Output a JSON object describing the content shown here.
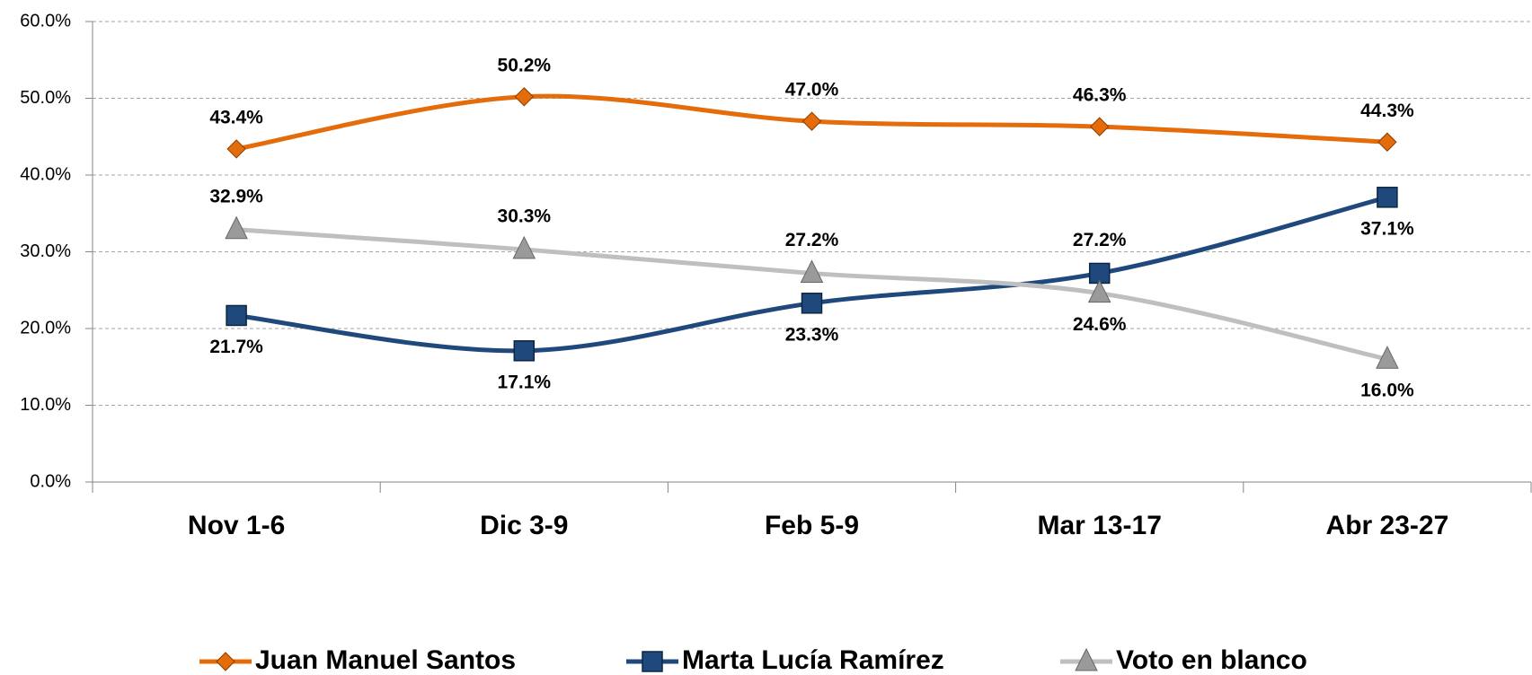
{
  "chart_data": {
    "type": "line",
    "categories": [
      "Nov 1-6",
      "Dic 3-9",
      "Feb 5-9",
      "Mar 13-17",
      "Abr 23-27"
    ],
    "series": [
      {
        "name": "Juan Manuel Santos",
        "color": "#E46C0A",
        "marker": "diamond",
        "values": [
          43.4,
          50.2,
          47.0,
          46.3,
          44.3
        ],
        "value_labels": [
          "43.4%",
          "50.2%",
          "47.0%",
          "46.3%",
          "44.3%"
        ]
      },
      {
        "name": "Marta Lucía Ramírez",
        "color": "#1F497D",
        "marker": "square",
        "values": [
          21.7,
          17.1,
          23.3,
          27.2,
          37.1
        ],
        "value_labels": [
          "21.7%",
          "17.1%",
          "23.3%",
          "27.2%",
          "37.1%"
        ]
      },
      {
        "name": "Voto en blanco",
        "color": "#BFBFBF",
        "marker": "triangle",
        "values": [
          32.9,
          30.3,
          27.2,
          24.6,
          16.0
        ],
        "value_labels": [
          "32.9%",
          "30.3%",
          "27.2%",
          "24.6%",
          "16.0%"
        ]
      }
    ],
    "ylim": [
      0,
      60
    ],
    "yticks": [
      {
        "value": 0,
        "label": "0.0%"
      },
      {
        "value": 10,
        "label": "10.0%"
      },
      {
        "value": 20,
        "label": "20.0%"
      },
      {
        "value": 30,
        "label": "30.0%"
      },
      {
        "value": 40,
        "label": "40.0%"
      },
      {
        "value": 50,
        "label": "50.0%"
      },
      {
        "value": 60,
        "label": "60.0%"
      }
    ],
    "grid": true,
    "smooth": true,
    "legend": "bottom"
  }
}
